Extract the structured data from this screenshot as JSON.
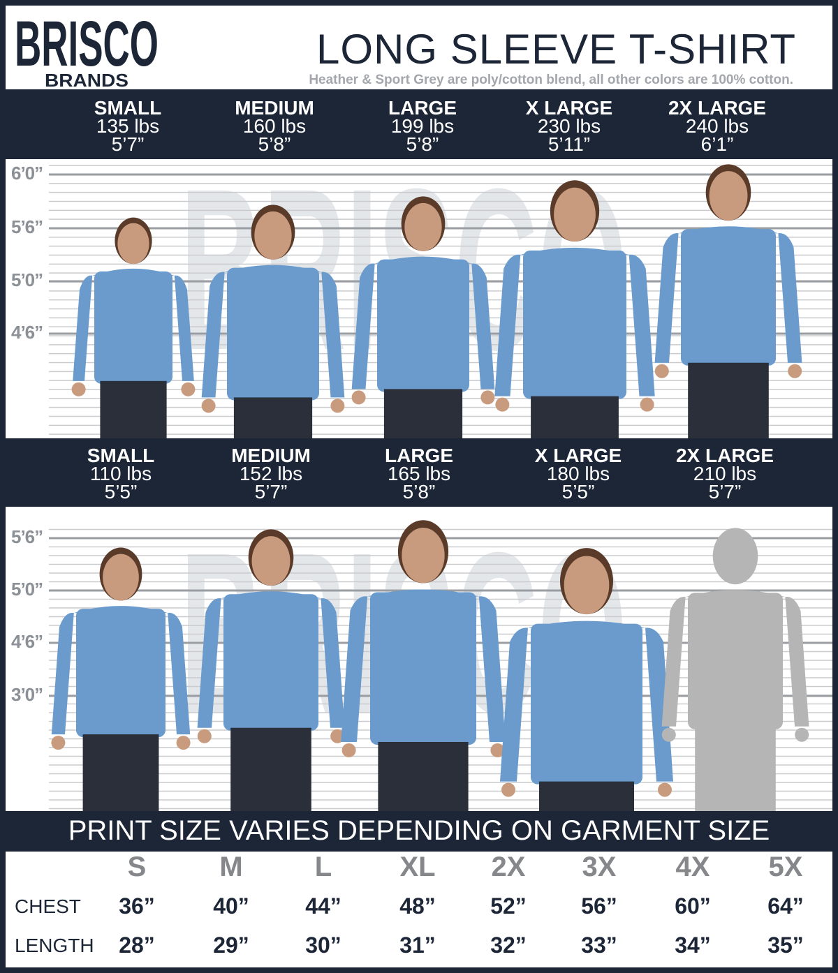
{
  "brand": {
    "logo_text": "BRISCO",
    "logo_sub": "BRANDS"
  },
  "header": {
    "title": "LONG SLEEVE T-SHIRT",
    "subtitle": "Heather & Sport Grey are poly/cotton blend, all other colors are 100% cotton."
  },
  "colors": {
    "navy": "#1c2637",
    "shirt": "#6a9bcc",
    "silhouette": "#b5b5b5",
    "size_header_grey": "#85878b"
  },
  "men": {
    "models": [
      {
        "size": "SMALL",
        "weight": "135 lbs",
        "height": "5’7”"
      },
      {
        "size": "MEDIUM",
        "weight": "160 lbs",
        "height": "5’8”"
      },
      {
        "size": "LARGE",
        "weight": "199 lbs",
        "height": "5’8”"
      },
      {
        "size": "X LARGE",
        "weight": "230 lbs",
        "height": "5’11”"
      },
      {
        "size": "2X LARGE",
        "weight": "240 lbs",
        "height": "6’1”"
      }
    ],
    "height_marks": [
      "6’0”",
      "5’6”",
      "5’0”",
      "4’6”"
    ]
  },
  "women": {
    "models": [
      {
        "size": "SMALL",
        "weight": "110 lbs",
        "height": "5’5”"
      },
      {
        "size": "MEDIUM",
        "weight": "152 lbs",
        "height": "5’7”"
      },
      {
        "size": "LARGE",
        "weight": "165 lbs",
        "height": "5’8”"
      },
      {
        "size": "X LARGE",
        "weight": "180 lbs",
        "height": "5’5”"
      },
      {
        "size": "2X LARGE",
        "weight": "210 lbs",
        "height": "5’7”"
      }
    ],
    "height_marks": [
      "5’6”",
      "5’0”",
      "4’6”",
      "3’0”"
    ]
  },
  "banner": "PRINT SIZE VARIES DEPENDING ON GARMENT SIZE",
  "size_table": {
    "sizes": [
      "S",
      "M",
      "L",
      "XL",
      "2X",
      "3X",
      "4X",
      "5X"
    ],
    "rows": [
      {
        "label": "CHEST",
        "values": [
          "36”",
          "40”",
          "44”",
          "48”",
          "52”",
          "56”",
          "60”",
          "64”"
        ]
      },
      {
        "label": "LENGTH",
        "values": [
          "28”",
          "29”",
          "30”",
          "31”",
          "32”",
          "33”",
          "34”",
          "35”"
        ]
      }
    ]
  }
}
